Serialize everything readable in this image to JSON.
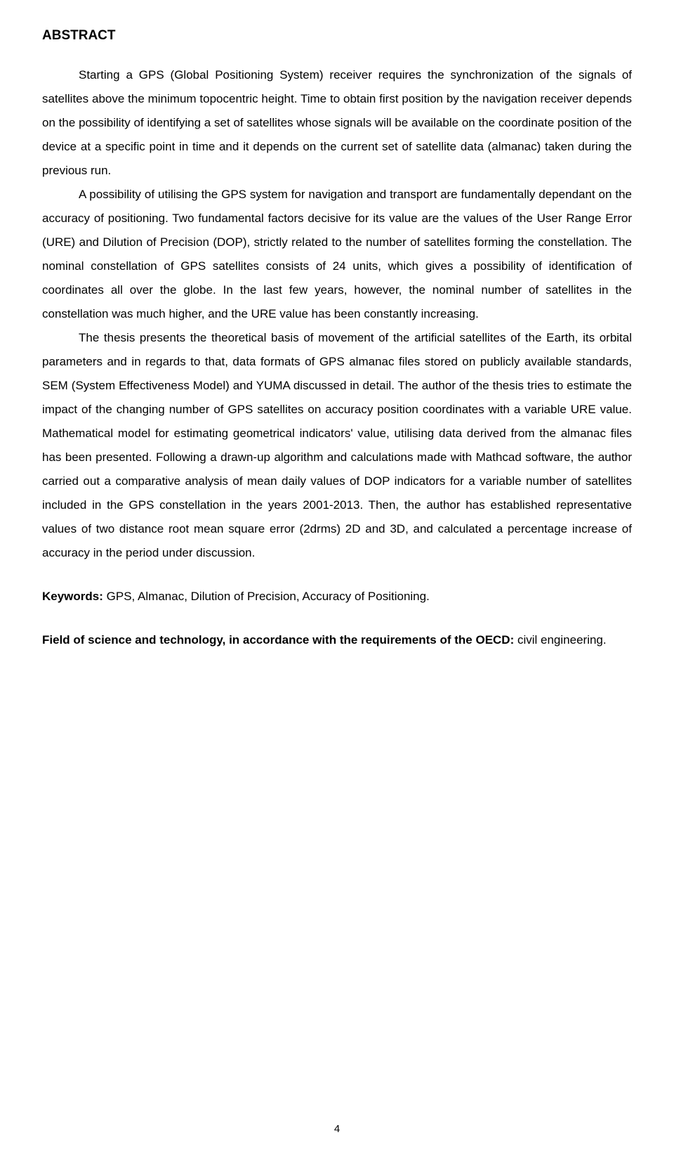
{
  "heading": "ABSTRACT",
  "paragraphs": {
    "p1": "Starting a GPS (Global Positioning System) receiver requires the synchronization of the signals of satellites above the minimum topocentric height. Time to obtain first position by the navigation receiver depends on the possibility of identifying a set of satellites whose signals will be available on the coordinate position of the device at a specific point in time and it depends on the current set of satellite data (almanac) taken during the previous run.",
    "p2": "A possibility of utilising the GPS system for navigation and transport are fundamentally dependant on the accuracy of positioning. Two fundamental factors decisive for its value are the values of the User Range Error (URE) and Dilution of Precision (DOP), strictly related to the number of satellites forming the constellation. The nominal constellation of GPS satellites consists of 24 units, which gives a possibility of identification of coordinates all over the globe. In the last few years, however, the nominal number of satellites in the constellation was much higher, and the URE value has been constantly increasing.",
    "p3": "The thesis presents the theoretical basis of movement of the artificial satellites of the Earth, its orbital parameters and in regards to that, data formats of GPS almanac files stored on publicly available standards, SEM (System Effectiveness Model) and YUMA discussed in detail. The author of the thesis tries to estimate the impact of the changing number of GPS satellites on accuracy position coordinates with a variable URE value. Mathematical model for estimating geometrical indicators' value, utilising data derived from the almanac files has been presented. Following a drawn-up algorithm and calculations made with Mathcad software, the author carried out a comparative analysis of mean daily values of DOP indicators for a variable number of satellites included in the GPS constellation in the years 2001-2013. Then, the author has established representative values of two distance root mean square error (2drms) 2D and 3D, and calculated a percentage increase of accuracy in the period under discussion."
  },
  "keywords": {
    "label": "Keywords:",
    "value": " GPS, Almanac, Dilution of Precision, Accuracy of Positioning."
  },
  "field": {
    "label": "Field of science and technology, in accordance with the requirements of the OECD:",
    "value": " civil engineering."
  },
  "page_number": "4"
}
